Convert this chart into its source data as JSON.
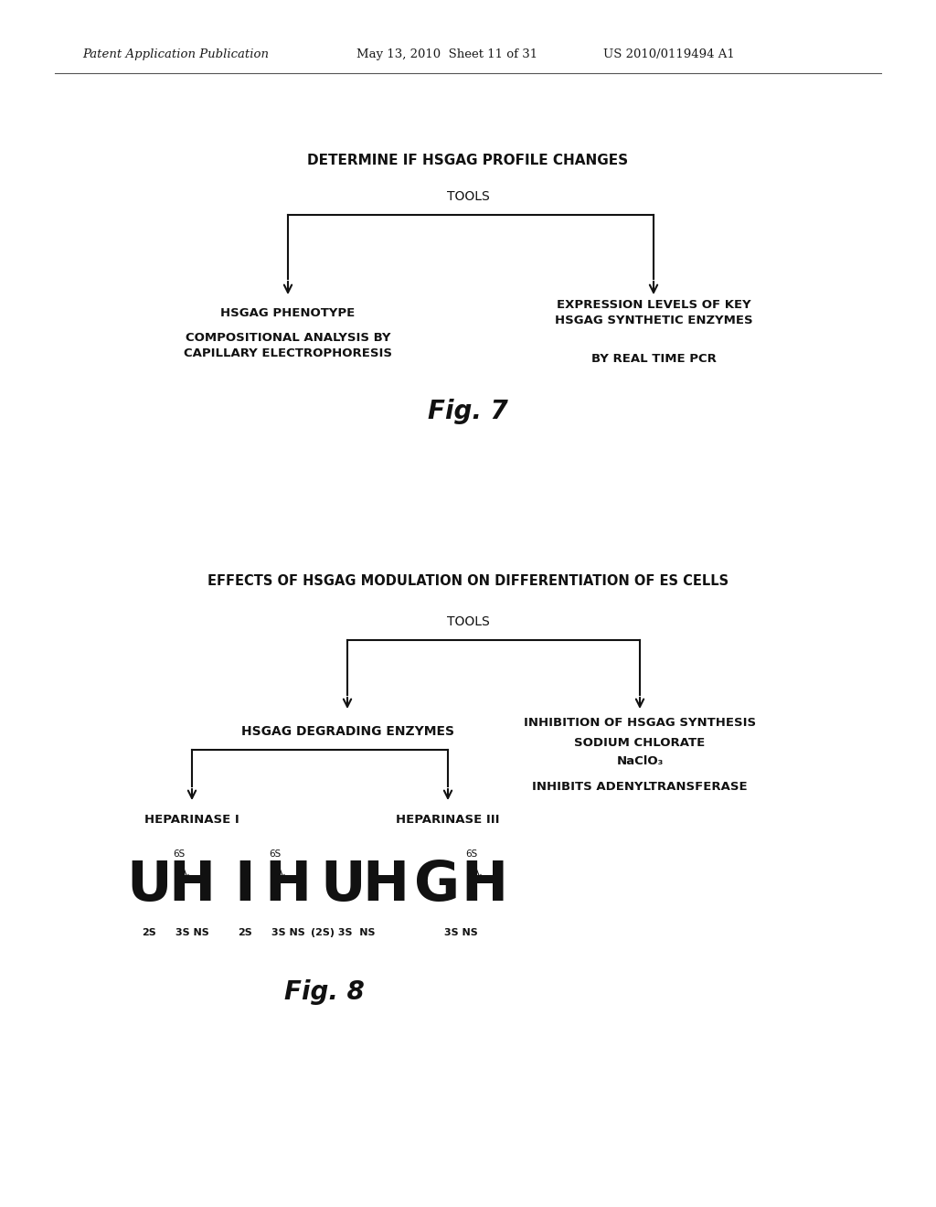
{
  "bg_color": "#ffffff",
  "header_left": "Patent Application Publication",
  "header_mid": "May 13, 2010  Sheet 11 of 31",
  "header_right": "US 2010/0119494 A1",
  "fig7": {
    "title": "DETERMINE IF HSGAG PROFILE CHANGES",
    "tools_label": "TOOLS",
    "left_label1": "HSGAG PHENOTYPE",
    "left_label2": "COMPOSITIONAL ANALYSIS BY\nCAPILLARY ELECTROPHORESIS",
    "right_label1": "EXPRESSION LEVELS OF KEY\nHSGAG SYNTHETIC ENZYMES",
    "right_label2": "BY REAL TIME PCR",
    "fig_label": "Fig. 7"
  },
  "fig8": {
    "title": "EFFECTS OF HSGAG MODULATION ON DIFFERENTIATION OF ES CELLS",
    "tools_label": "TOOLS",
    "left_branch": "HSGAG DEGRADING ENZYMES",
    "right_branch_line1": "INHIBITION OF HSGAG SYNTHESIS",
    "right_branch_line2": "SODIUM CHLORATE",
    "right_branch_line3": "NaClO₃",
    "left_sub1": "HEPARINASE I",
    "left_sub2": "HEPARINASE III",
    "right_note": "INHIBITS ADENYLTRANSFERASE",
    "fig_label": "Fig. 8"
  }
}
